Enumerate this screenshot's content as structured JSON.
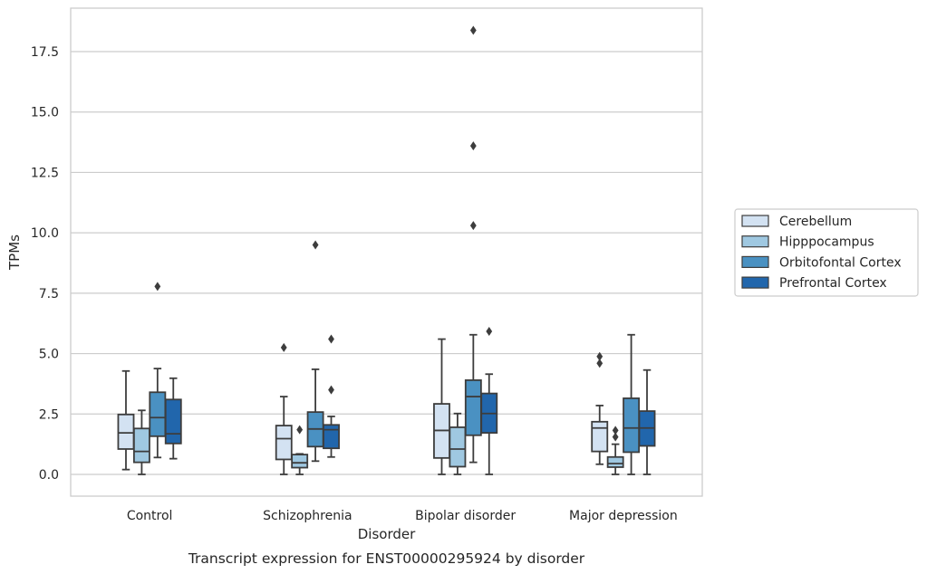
{
  "chart_data": {
    "type": "box",
    "xlabel": "Disorder",
    "ylabel": "TPMs",
    "caption": "Transcript expression for ENST00000295924 by disorder",
    "ylim": [
      -0.9,
      19.3
    ],
    "yticks": [
      0.0,
      2.5,
      5.0,
      7.5,
      10.0,
      12.5,
      15.0,
      17.5
    ],
    "ytick_labels": [
      "0.0",
      "2.5",
      "5.0",
      "7.5",
      "10.0",
      "12.5",
      "15.0",
      "17.5"
    ],
    "grid": true,
    "legend_position": "right",
    "categories": [
      "Control",
      "Schizophrenia",
      "Bipolar disorder",
      "Major depression"
    ],
    "series": [
      {
        "name": "Cerebellum",
        "color": "#d3e2f2",
        "boxes": [
          {
            "whislo": 0.2,
            "q1": 1.05,
            "med": 1.72,
            "q3": 2.48,
            "whishi": 4.28,
            "fliers": []
          },
          {
            "whislo": 0.0,
            "q1": 0.62,
            "med": 1.48,
            "q3": 2.02,
            "whishi": 3.22,
            "fliers": [
              5.25
            ]
          },
          {
            "whislo": 0.0,
            "q1": 0.68,
            "med": 1.82,
            "q3": 2.92,
            "whishi": 5.6,
            "fliers": []
          },
          {
            "whislo": 0.42,
            "q1": 0.95,
            "med": 1.92,
            "q3": 2.18,
            "whishi": 2.85,
            "fliers": [
              4.6,
              4.88
            ]
          }
        ]
      },
      {
        "name": "Hipppocampus",
        "color": "#9fc8e1",
        "boxes": [
          {
            "whislo": 0.0,
            "q1": 0.5,
            "med": 0.95,
            "q3": 1.9,
            "whishi": 2.65,
            "fliers": []
          },
          {
            "whislo": 0.0,
            "q1": 0.28,
            "med": 0.48,
            "q3": 0.82,
            "whishi": 0.85,
            "fliers": [
              1.85
            ]
          },
          {
            "whislo": 0.0,
            "q1": 0.32,
            "med": 1.05,
            "q3": 1.95,
            "whishi": 2.52,
            "fliers": []
          },
          {
            "whislo": 0.0,
            "q1": 0.3,
            "med": 0.45,
            "q3": 0.72,
            "whishi": 1.25,
            "fliers": [
              1.55,
              1.82
            ]
          }
        ]
      },
      {
        "name": "Orbitofontal Cortex",
        "color": "#4a91c2",
        "boxes": [
          {
            "whislo": 0.7,
            "q1": 1.58,
            "med": 2.35,
            "q3": 3.4,
            "whishi": 4.38,
            "fliers": [
              7.78
            ]
          },
          {
            "whislo": 0.55,
            "q1": 1.15,
            "med": 1.88,
            "q3": 2.58,
            "whishi": 4.35,
            "fliers": [
              9.5
            ]
          },
          {
            "whislo": 0.5,
            "q1": 1.62,
            "med": 3.22,
            "q3": 3.9,
            "whishi": 5.78,
            "fliers": [
              10.3,
              13.6,
              18.38
            ]
          },
          {
            "whislo": 0.0,
            "q1": 0.92,
            "med": 1.92,
            "q3": 3.15,
            "whishi": 5.78,
            "fliers": []
          }
        ]
      },
      {
        "name": "Prefrontal Cortex",
        "color": "#2166ac",
        "boxes": [
          {
            "whislo": 0.65,
            "q1": 1.28,
            "med": 1.68,
            "q3": 3.1,
            "whishi": 3.98,
            "fliers": []
          },
          {
            "whislo": 0.72,
            "q1": 1.08,
            "med": 1.85,
            "q3": 2.05,
            "whishi": 2.4,
            "fliers": [
              3.5,
              5.6
            ]
          },
          {
            "whislo": 0.0,
            "q1": 1.72,
            "med": 2.52,
            "q3": 3.35,
            "whishi": 4.15,
            "fliers": [
              5.92
            ]
          },
          {
            "whislo": 0.0,
            "q1": 1.18,
            "med": 1.92,
            "q3": 2.62,
            "whishi": 4.32,
            "fliers": []
          }
        ]
      }
    ],
    "colors": {
      "box_edge": "#3d3d3d",
      "grid": "#cccccc",
      "frame": "#cccccc",
      "legend_border": "#cccccc"
    }
  }
}
